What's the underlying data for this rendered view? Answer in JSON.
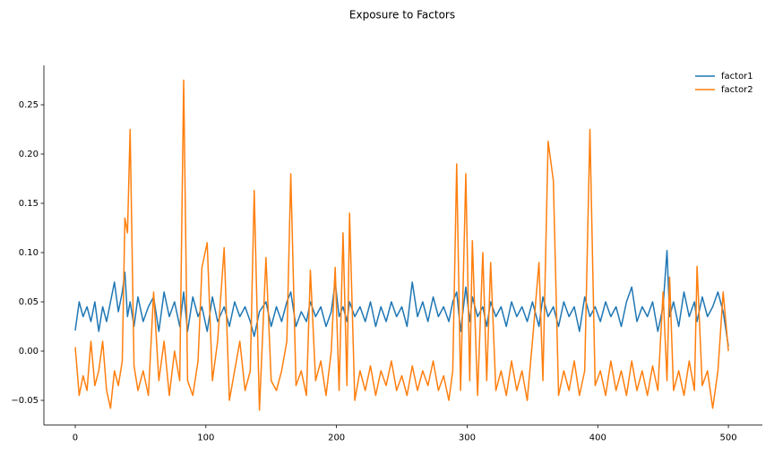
{
  "chart_data": {
    "type": "line",
    "title": "Exposure to Factors",
    "legend": "upper right",
    "grid": false,
    "x": [
      0,
      3,
      6,
      9,
      12,
      15,
      18,
      21,
      24,
      27,
      30,
      33,
      36,
      38,
      40,
      42,
      45,
      48,
      52,
      56,
      60,
      64,
      68,
      72,
      76,
      80,
      83,
      86,
      90,
      94,
      97,
      101,
      105,
      109,
      114,
      118,
      122,
      126,
      130,
      134,
      137,
      141,
      146,
      150,
      154,
      158,
      162,
      165,
      169,
      173,
      177,
      180,
      184,
      188,
      192,
      196,
      199,
      202,
      205,
      208,
      210,
      214,
      218,
      222,
      226,
      230,
      234,
      238,
      242,
      246,
      250,
      254,
      258,
      262,
      266,
      270,
      274,
      278,
      282,
      286,
      289,
      292,
      295,
      299,
      302,
      304,
      308,
      312,
      315,
      318,
      322,
      326,
      330,
      334,
      338,
      342,
      346,
      350,
      355,
      358,
      362,
      366,
      370,
      374,
      378,
      382,
      386,
      390,
      394,
      398,
      402,
      406,
      410,
      414,
      418,
      422,
      426,
      430,
      434,
      438,
      442,
      446,
      450,
      453,
      455,
      458,
      462,
      466,
      470,
      474,
      476,
      480,
      484,
      488,
      492,
      496,
      500
    ],
    "series": [
      {
        "name": "factor1",
        "color": "#1f77b4",
        "values": [
          0.021,
          0.05,
          0.035,
          0.045,
          0.03,
          0.05,
          0.02,
          0.045,
          0.03,
          0.05,
          0.07,
          0.04,
          0.06,
          0.08,
          0.035,
          0.05,
          0.025,
          0.055,
          0.03,
          0.045,
          0.055,
          0.02,
          0.06,
          0.035,
          0.05,
          0.025,
          0.06,
          0.02,
          0.055,
          0.035,
          0.045,
          0.02,
          0.055,
          0.03,
          0.045,
          0.025,
          0.05,
          0.035,
          0.045,
          0.03,
          0.015,
          0.04,
          0.05,
          0.025,
          0.045,
          0.03,
          0.05,
          0.06,
          0.025,
          0.04,
          0.03,
          0.05,
          0.035,
          0.045,
          0.025,
          0.04,
          0.07,
          0.035,
          0.045,
          0.03,
          0.05,
          0.035,
          0.045,
          0.03,
          0.05,
          0.025,
          0.045,
          0.03,
          0.05,
          0.035,
          0.045,
          0.025,
          0.07,
          0.035,
          0.05,
          0.03,
          0.055,
          0.035,
          0.045,
          0.03,
          0.05,
          0.06,
          0.02,
          0.065,
          0.03,
          0.055,
          0.035,
          0.045,
          0.025,
          0.05,
          0.035,
          0.045,
          0.025,
          0.05,
          0.035,
          0.045,
          0.03,
          0.05,
          0.025,
          0.055,
          0.035,
          0.045,
          0.025,
          0.05,
          0.035,
          0.045,
          0.02,
          0.055,
          0.035,
          0.045,
          0.03,
          0.05,
          0.035,
          0.045,
          0.025,
          0.05,
          0.065,
          0.03,
          0.045,
          0.035,
          0.05,
          0.02,
          0.045,
          0.102,
          0.035,
          0.05,
          0.025,
          0.06,
          0.035,
          0.05,
          0.03,
          0.055,
          0.035,
          0.045,
          0.06,
          0.04,
          0.005
        ]
      },
      {
        "name": "factor2",
        "color": "#ff7f0e",
        "values": [
          0.004,
          -0.045,
          -0.025,
          -0.04,
          0.01,
          -0.035,
          -0.02,
          0.01,
          -0.04,
          -0.058,
          -0.02,
          -0.035,
          -0.01,
          0.135,
          0.12,
          0.225,
          -0.015,
          -0.04,
          -0.02,
          -0.045,
          0.06,
          -0.03,
          0.01,
          -0.045,
          0.0,
          -0.03,
          0.275,
          -0.03,
          -0.045,
          -0.01,
          0.085,
          0.11,
          -0.03,
          0.01,
          0.105,
          -0.05,
          -0.02,
          0.01,
          -0.04,
          -0.02,
          0.163,
          -0.06,
          0.095,
          -0.03,
          -0.04,
          -0.02,
          0.01,
          0.18,
          -0.035,
          -0.02,
          -0.045,
          0.082,
          -0.03,
          -0.01,
          -0.045,
          0.0,
          0.085,
          -0.04,
          0.12,
          -0.035,
          0.14,
          -0.05,
          -0.02,
          -0.04,
          -0.015,
          -0.045,
          -0.02,
          -0.035,
          -0.01,
          -0.04,
          -0.025,
          -0.045,
          -0.015,
          -0.04,
          -0.02,
          -0.035,
          -0.01,
          -0.04,
          -0.025,
          -0.05,
          -0.02,
          0.19,
          -0.04,
          0.18,
          -0.03,
          0.112,
          -0.045,
          0.1,
          -0.03,
          0.09,
          -0.04,
          -0.02,
          -0.045,
          -0.01,
          -0.04,
          -0.02,
          -0.05,
          0.01,
          0.09,
          -0.03,
          0.213,
          0.173,
          -0.045,
          -0.02,
          -0.04,
          -0.01,
          -0.045,
          -0.02,
          0.225,
          -0.035,
          -0.02,
          -0.045,
          -0.01,
          -0.04,
          -0.02,
          -0.045,
          -0.01,
          -0.04,
          -0.02,
          -0.045,
          -0.015,
          -0.04,
          0.06,
          -0.03,
          0.075,
          -0.04,
          -0.02,
          -0.045,
          -0.01,
          -0.04,
          0.086,
          -0.035,
          -0.02,
          -0.058,
          -0.02,
          0.06,
          0.0
        ]
      }
    ],
    "xlim": [
      -24,
      526
    ],
    "xticks": [
      0,
      100,
      200,
      300,
      400,
      500
    ],
    "ylim": [
      -0.075,
      0.29
    ],
    "yticks": [
      {
        "value": -0.05,
        "label": "−0.05"
      },
      {
        "value": 0,
        "label": "0.00"
      },
      {
        "value": 0.05,
        "label": "0.05"
      },
      {
        "value": 0.1,
        "label": "0.10"
      },
      {
        "value": 0.15,
        "label": "0.15"
      },
      {
        "value": 0.2,
        "label": "0.20"
      },
      {
        "value": 0.25,
        "label": "0.25"
      }
    ]
  }
}
